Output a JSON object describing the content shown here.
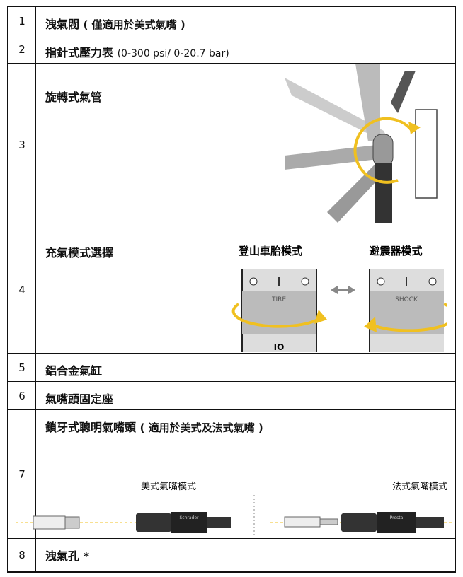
{
  "table": {
    "rows": [
      {
        "number": "1",
        "label": "洩氣閥",
        "note": "( 僅適用於美式氣嘴 )"
      },
      {
        "number": "2",
        "label": "指針式壓力表",
        "note": "(0-300 psi/ 0-20.7 bar)"
      },
      {
        "number": "3",
        "label": "旋轉式氣管"
      },
      {
        "number": "4",
        "label": "充氣模式選擇",
        "captions": [
          "登山車胎模式",
          "避震器模式"
        ],
        "markings": [
          "TIRE",
          "SHOCK",
          "IO"
        ]
      },
      {
        "number": "5",
        "label": "鋁合金氣缸"
      },
      {
        "number": "6",
        "label": "氣嘴頭固定座"
      },
      {
        "number": "7",
        "label": "鎖牙式聰明氣嘴頭",
        "note": "( 適用於美式及法式氣嘴 )",
        "captions": [
          "美式氣嘴模式",
          "法式氣嘴模式"
        ],
        "markings": [
          "Schrader",
          "Presta"
        ]
      },
      {
        "number": "8",
        "label": "洩氣孔 *"
      }
    ]
  }
}
